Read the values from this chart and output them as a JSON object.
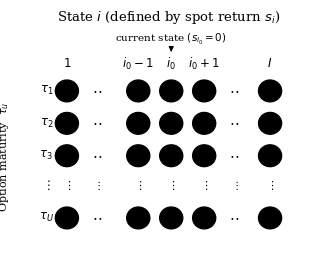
{
  "title": "State $i$ (defined by spot return $s_i$)",
  "arrow_label": "current state $(s_{i_0} = 0)$",
  "col_label_texts": [
    "$1$",
    "",
    "$i_0-1$",
    "$i_0$",
    "$i_0+1$",
    "",
    "$I$"
  ],
  "row_labels": [
    "$\\tau_1$",
    "$\\tau_2$",
    "$\\tau_3$",
    "$\\vdots$",
    "$\\tau_U$"
  ],
  "ylabel_outer": "Option maturity  $\\tau_u$",
  "big_dot_col_indices": [
    0,
    2,
    3,
    4,
    6
  ],
  "ellipsis_col_indices": [
    1,
    5
  ],
  "vdot_row_index": 3,
  "dot_color": "#000000",
  "background_color": "#ffffff"
}
